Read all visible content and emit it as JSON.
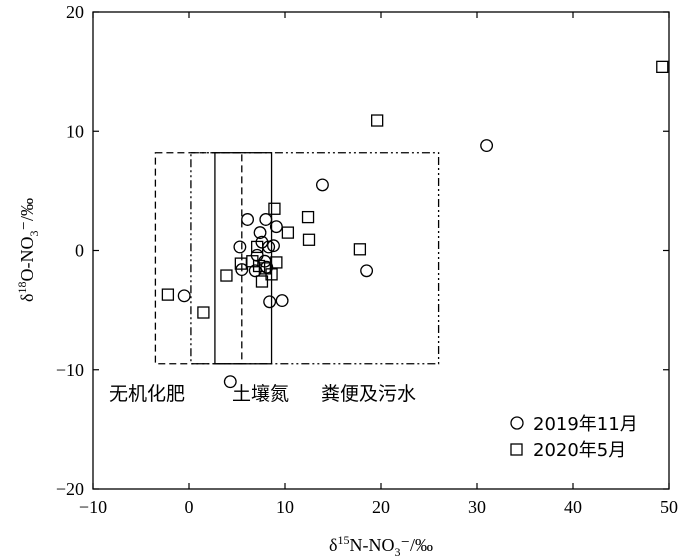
{
  "chart_data": {
    "type": "scatter",
    "xlabel": {
      "main": "δ",
      "sup": "15",
      "mid": "N-NO",
      "sub": "3",
      "tail": "⁻/‰"
    },
    "ylabel": {
      "main": "δ",
      "sup": "18",
      "mid": "O-NO",
      "sub": "3",
      "tail": "⁻/‰"
    },
    "xlim": [
      -10,
      50
    ],
    "ylim": [
      -20,
      20
    ],
    "xticks": [
      "−10",
      "0",
      "10",
      "20",
      "30",
      "40",
      "50"
    ],
    "yticks": [
      "20",
      "10",
      "0",
      "−10",
      "−20"
    ],
    "grid": false,
    "legend_position": "bottom-right",
    "series": [
      {
        "name": "2019年11月",
        "marker": "circle",
        "points": [
          [
            -0.5,
            -3.8
          ],
          [
            4.3,
            -11.0
          ],
          [
            5.3,
            0.3
          ],
          [
            5.5,
            -1.6
          ],
          [
            6.1,
            2.6
          ],
          [
            6.9,
            -1.7
          ],
          [
            7.1,
            -0.4
          ],
          [
            7.4,
            1.5
          ],
          [
            7.6,
            0.7
          ],
          [
            7.9,
            -0.9
          ],
          [
            8.0,
            2.6
          ],
          [
            8.1,
            -1.4
          ],
          [
            8.3,
            0.3
          ],
          [
            8.4,
            -4.3
          ],
          [
            8.8,
            0.4
          ],
          [
            9.1,
            2.0
          ],
          [
            9.7,
            -4.2
          ],
          [
            13.9,
            5.5
          ],
          [
            18.5,
            -1.7
          ],
          [
            31.0,
            8.8
          ]
        ]
      },
      {
        "name": "2020年5月",
        "marker": "square",
        "points": [
          [
            -2.2,
            -3.7
          ],
          [
            1.5,
            -5.2
          ],
          [
            3.9,
            -2.1
          ],
          [
            5.4,
            -1.1
          ],
          [
            6.6,
            -0.9
          ],
          [
            7.1,
            0.3
          ],
          [
            7.3,
            -1.3
          ],
          [
            7.6,
            -2.6
          ],
          [
            7.9,
            -1.5
          ],
          [
            8.6,
            -2.0
          ],
          [
            8.9,
            3.5
          ],
          [
            9.1,
            -1.0
          ],
          [
            10.3,
            1.5
          ],
          [
            12.4,
            2.8
          ],
          [
            12.5,
            0.9
          ],
          [
            17.8,
            0.1
          ],
          [
            19.6,
            10.9
          ],
          [
            49.3,
            15.4
          ]
        ]
      }
    ],
    "regions": [
      {
        "label": "无机化肥",
        "x": [
          -3.5,
          5.5
        ],
        "y": [
          -9.5,
          8.2
        ],
        "style": "dashed"
      },
      {
        "label": "土壤氮",
        "x": [
          2.7,
          8.6
        ],
        "y": [
          -9.5,
          8.2
        ],
        "style": "solid"
      },
      {
        "label": "粪便及污水",
        "x": [
          0.2,
          26.0
        ],
        "y": [
          -9.5,
          8.2
        ],
        "style": "dashdot"
      }
    ]
  }
}
